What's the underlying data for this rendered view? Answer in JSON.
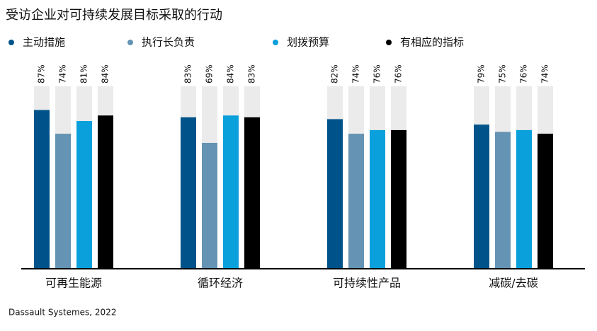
{
  "chart_data": {
    "type": "bar",
    "title": "受访企业对可持续发展目标采取的行动",
    "categories": [
      "可再生能源",
      "循环经济",
      "可持续性产品",
      "减碳/去碳"
    ],
    "series": [
      {
        "name": "主动措施",
        "color": "#00538a",
        "values": [
          87,
          83,
          82,
          79
        ],
        "value_labels": [
          "87%",
          "83%",
          "82%",
          "79%"
        ]
      },
      {
        "name": "执行长负责",
        "color": "#6593b3",
        "values": [
          74,
          69,
          74,
          75
        ],
        "value_labels": [
          "74%",
          "69%",
          "74%",
          "75%"
        ]
      },
      {
        "name": "划拨预算",
        "color": "#0aa0dc",
        "values": [
          81,
          84,
          76,
          76
        ],
        "value_labels": [
          "81%",
          "84%",
          "76%",
          "76%"
        ]
      },
      {
        "name": "有相应的指标",
        "color": "#000000",
        "values": [
          84,
          83,
          76,
          74
        ],
        "value_labels": [
          "84%",
          "83%",
          "76%",
          "74%"
        ]
      }
    ],
    "ylim": [
      0,
      100
    ],
    "source": "Dassault Systemes, 2022"
  }
}
